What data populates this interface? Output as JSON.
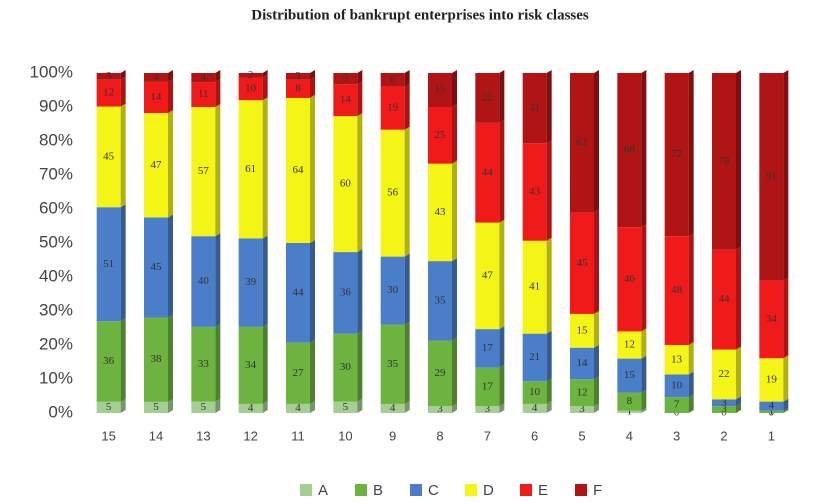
{
  "chart_data": {
    "type": "bar",
    "stacking": "percent",
    "title": "Distribution of bankrupt enterprises into risk classes",
    "categories": [
      "15",
      "14",
      "13",
      "12",
      "11",
      "10",
      "9",
      "8",
      "7",
      "6",
      "5",
      "4",
      "3",
      "2",
      "1"
    ],
    "series": [
      {
        "name": "A",
        "color": "#a3d092",
        "values": [
          5,
          5,
          5,
          4,
          4,
          5,
          4,
          3,
          3,
          4,
          3,
          1,
          0,
          0,
          0
        ]
      },
      {
        "name": "B",
        "color": "#6cb33f",
        "values": [
          36,
          38,
          33,
          34,
          27,
          30,
          35,
          29,
          17,
          10,
          12,
          8,
          7,
          3,
          1
        ]
      },
      {
        "name": "C",
        "color": "#4a7ec8",
        "values": [
          51,
          45,
          40,
          39,
          44,
          36,
          30,
          35,
          17,
          21,
          14,
          15,
          10,
          3,
          4
        ]
      },
      {
        "name": "D",
        "color": "#f4f416",
        "values": [
          45,
          47,
          57,
          61,
          64,
          60,
          56,
          43,
          47,
          41,
          15,
          12,
          13,
          22,
          19
        ]
      },
      {
        "name": "E",
        "color": "#f01a1a",
        "values": [
          12,
          14,
          11,
          10,
          8,
          14,
          19,
          25,
          44,
          43,
          45,
          46,
          48,
          44,
          34
        ]
      },
      {
        "name": "F",
        "color": "#b01414",
        "values": [
          3,
          4,
          4,
          2,
          3,
          5,
          6,
          15,
          22,
          31,
          62,
          68,
          72,
          78,
          91
        ]
      }
    ],
    "ylim": [
      0,
      100
    ],
    "yticks": [
      {
        "value": 0,
        "label": "0%"
      },
      {
        "value": 10,
        "label": "10%"
      },
      {
        "value": 20,
        "label": "20%"
      },
      {
        "value": 30,
        "label": "30%"
      },
      {
        "value": 40,
        "label": "40%"
      },
      {
        "value": 50,
        "label": "50%"
      },
      {
        "value": 60,
        "label": "60%"
      },
      {
        "value": 70,
        "label": "70%"
      },
      {
        "value": 80,
        "label": "80%"
      },
      {
        "value": 90,
        "label": "90%"
      },
      {
        "value": 100,
        "label": "100%"
      }
    ],
    "grid": false,
    "legend": "bottom"
  }
}
